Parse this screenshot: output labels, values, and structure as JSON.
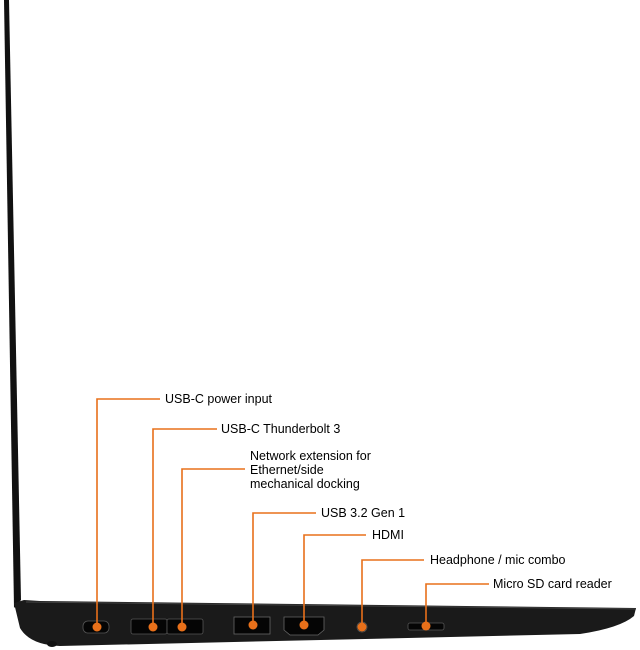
{
  "accent_color": "#e8701a",
  "callouts": [
    {
      "label": "USB-C power input",
      "icon": "usb-c-port"
    },
    {
      "label": "USB-C Thunderbolt 3",
      "icon": "thunderbolt-port"
    },
    {
      "label": "Network extension for\nEthernet/side\nmechanical docking",
      "icon": "network-extension-port"
    },
    {
      "label": "USB 3.2 Gen 1",
      "icon": "usb-a-port"
    },
    {
      "label": "HDMI",
      "icon": "hdmi-port"
    },
    {
      "label": "Headphone / mic combo",
      "icon": "audio-jack"
    },
    {
      "label": "Micro SD card reader",
      "icon": "micro-sd-slot"
    }
  ]
}
